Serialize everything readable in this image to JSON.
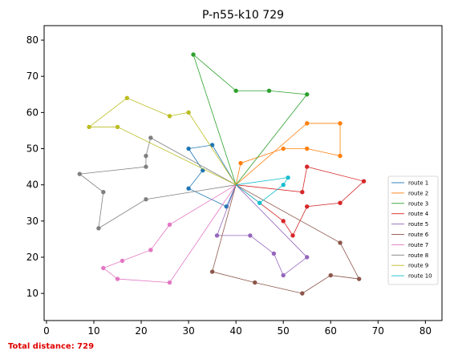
{
  "chart_data": {
    "type": "line",
    "title": "P-n55-k10 729",
    "xlabel": "",
    "ylabel": "",
    "xlim": [
      -0.5,
      83.5
    ],
    "ylim": [
      2.5,
      84
    ],
    "xticks": [
      0,
      10,
      20,
      30,
      40,
      50,
      60,
      70,
      80
    ],
    "yticks": [
      10,
      20,
      30,
      40,
      50,
      60,
      70,
      80
    ],
    "grid": false,
    "legend_position": "center-right",
    "depot": [
      40,
      40
    ],
    "series": [
      {
        "name": "route 1",
        "color": "#1f77b4",
        "points": [
          [
            40,
            40
          ],
          [
            38,
            34
          ],
          [
            30,
            39
          ],
          [
            33,
            44
          ],
          [
            30,
            50
          ],
          [
            35,
            51
          ],
          [
            40,
            40
          ]
        ]
      },
      {
        "name": "route 2",
        "color": "#ff7f0e",
        "points": [
          [
            40,
            40
          ],
          [
            41,
            46
          ],
          [
            50,
            50
          ],
          [
            55,
            50
          ],
          [
            62,
            48
          ],
          [
            62,
            57
          ],
          [
            55,
            57
          ],
          [
            40,
            40
          ]
        ]
      },
      {
        "name": "route 3",
        "color": "#2ca02c",
        "points": [
          [
            40,
            40
          ],
          [
            31,
            76
          ],
          [
            40,
            66
          ],
          [
            47,
            66
          ],
          [
            55,
            65
          ],
          [
            40,
            40
          ]
        ]
      },
      {
        "name": "route 4",
        "color": "#d62728",
        "points": [
          [
            40,
            40
          ],
          [
            54,
            38
          ],
          [
            55,
            45
          ],
          [
            67,
            41
          ],
          [
            62,
            35
          ],
          [
            55,
            34
          ],
          [
            52,
            26
          ],
          [
            50,
            30
          ],
          [
            40,
            40
          ]
        ]
      },
      {
        "name": "route 5",
        "color": "#9467bd",
        "points": [
          [
            40,
            40
          ],
          [
            55,
            20
          ],
          [
            50,
            15
          ],
          [
            48,
            21
          ],
          [
            43,
            26
          ],
          [
            36,
            26
          ],
          [
            40,
            40
          ]
        ]
      },
      {
        "name": "route 6",
        "color": "#8c564b",
        "points": [
          [
            40,
            40
          ],
          [
            62,
            24
          ],
          [
            66,
            14
          ],
          [
            60,
            15
          ],
          [
            54,
            10
          ],
          [
            44,
            13
          ],
          [
            35,
            16
          ],
          [
            40,
            40
          ]
        ]
      },
      {
        "name": "route 7",
        "color": "#e377c2",
        "points": [
          [
            40,
            40
          ],
          [
            26,
            29
          ],
          [
            22,
            22
          ],
          [
            16,
            19
          ],
          [
            12,
            17
          ],
          [
            15,
            14
          ],
          [
            26,
            13
          ],
          [
            40,
            40
          ]
        ]
      },
      {
        "name": "route 8",
        "color": "#7f7f7f",
        "points": [
          [
            40,
            40
          ],
          [
            21,
            36
          ],
          [
            11,
            28
          ],
          [
            12,
            38
          ],
          [
            7,
            43
          ],
          [
            21,
            45
          ],
          [
            21,
            48
          ],
          [
            22,
            53
          ],
          [
            40,
            40
          ]
        ]
      },
      {
        "name": "route 9",
        "color": "#bcbd22",
        "points": [
          [
            40,
            40
          ],
          [
            30,
            60
          ],
          [
            26,
            59
          ],
          [
            17,
            64
          ],
          [
            9,
            56
          ],
          [
            15,
            56
          ],
          [
            40,
            40
          ]
        ]
      },
      {
        "name": "route 10",
        "color": "#17becf",
        "points": [
          [
            40,
            40
          ],
          [
            45,
            35
          ],
          [
            50,
            40
          ],
          [
            51,
            42
          ],
          [
            40,
            40
          ]
        ]
      }
    ]
  },
  "footer": {
    "text": "Total distance: 729",
    "color": "#e00000"
  }
}
